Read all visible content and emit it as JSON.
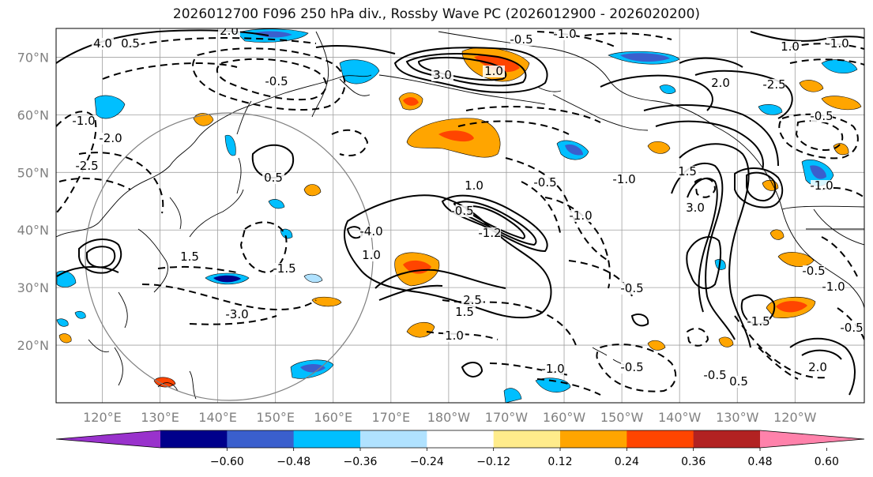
{
  "title": "2026012700 F096 250 hPa div., Rossby Wave PC (2026012900 - 2026020200)",
  "colors": {
    "frame": "#000000",
    "grid": "#a0a0a0",
    "axis_label": "#808080",
    "coast": "#000000",
    "contour": "#000000"
  },
  "map": {
    "lat_labels": [
      "70°N",
      "60°N",
      "50°N",
      "40°N",
      "30°N",
      "20°N"
    ],
    "lat_values": [
      70,
      60,
      50,
      40,
      30,
      20
    ],
    "lon_labels": [
      "120°E",
      "130°E",
      "140°E",
      "150°E",
      "160°E",
      "170°E",
      "180°W",
      "170°W",
      "160°W",
      "150°W",
      "140°W",
      "130°W",
      "120°W"
    ],
    "lon_values": [
      120,
      130,
      140,
      150,
      160,
      170,
      180,
      190,
      200,
      210,
      220,
      230,
      240
    ],
    "lat_range": [
      10,
      75
    ],
    "lon_range": [
      112,
      252
    ],
    "contour_labels": [
      "4.0",
      "0.5",
      "2.0",
      "3.0",
      "1.0",
      "-4.0",
      "-2.5",
      "-2.0",
      "-1.0",
      "-0.5",
      "-1.5",
      "-3.0",
      "1.5",
      "2.5",
      "-1.2",
      "-0.5",
      "-1.0",
      "1.0",
      "-0.5",
      "-0.5",
      "-1.0",
      "1.0",
      "-1.0",
      "-0.5",
      "-1.0",
      "-0.5",
      "-1.5",
      "-1.0",
      "0.5",
      "1.0",
      "1.5",
      "3.0",
      "2.0",
      "-0.5",
      "1.5",
      "-2.5",
      "-0.5",
      "2.0",
      "-0.5",
      "-1.0",
      "1.0",
      "0.5",
      "-0.5",
      "-1.0"
    ]
  },
  "colorbar": {
    "ticks": [
      "−0.60",
      "−0.48",
      "−0.36",
      "−0.24",
      "−0.12",
      "0.12",
      "0.24",
      "0.36",
      "0.48",
      "0.60"
    ],
    "colors": [
      "#9932cc",
      "#00008b",
      "#3a5fcd",
      "#00bfff",
      "#b0e2ff",
      "#ffffff",
      "#ffec8b",
      "#ffa500",
      "#ff4500",
      "#b22222",
      "#ff82ab"
    ]
  }
}
